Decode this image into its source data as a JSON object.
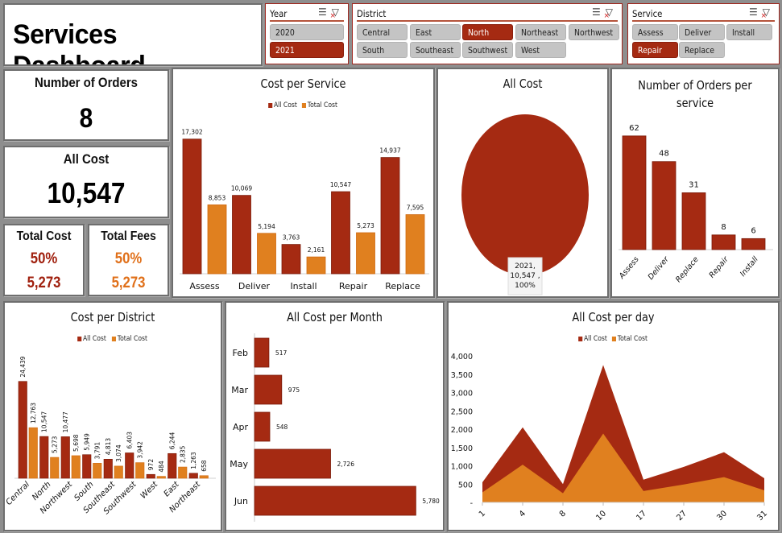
{
  "header": {
    "title": "Services Dashboard"
  },
  "colors": {
    "all_cost": "#a52a12",
    "total_cost": "#e0801f",
    "selected": "#a52a12",
    "unselected": "#c4c4c4"
  },
  "slicers": {
    "year": {
      "label": "Year",
      "icons": [
        "multi-select-icon",
        "clear-filter-icon"
      ],
      "options": [
        {
          "label": "2020",
          "selected": false
        },
        {
          "label": "2021",
          "selected": true
        }
      ]
    },
    "district": {
      "label": "District",
      "icons": [
        "multi-select-icon",
        "clear-filter-icon"
      ],
      "options": [
        {
          "label": "Central",
          "selected": false
        },
        {
          "label": "East",
          "selected": false
        },
        {
          "label": "North",
          "selected": true
        },
        {
          "label": "Northeast",
          "selected": false
        },
        {
          "label": "Northwest",
          "selected": false
        },
        {
          "label": "South",
          "selected": false
        },
        {
          "label": "Southeast",
          "selected": false
        },
        {
          "label": "Southwest",
          "selected": false
        },
        {
          "label": "West",
          "selected": false
        }
      ]
    },
    "service": {
      "label": "Service",
      "icons": [
        "multi-select-icon",
        "clear-filter-icon"
      ],
      "options": [
        {
          "label": "Assess",
          "selected": false
        },
        {
          "label": "Deliver",
          "selected": false
        },
        {
          "label": "Install",
          "selected": false
        },
        {
          "label": "Repair",
          "selected": true
        },
        {
          "label": "Replace",
          "selected": false
        }
      ]
    }
  },
  "kpis": {
    "orders": {
      "label": "Number of Orders",
      "value": "8"
    },
    "all_cost": {
      "label": "All Cost",
      "value": "10,547"
    },
    "total_cost": {
      "label": "Total Cost",
      "percent": "50%",
      "value": "5,273"
    },
    "total_fees": {
      "label": "Total Fees",
      "percent": "50%",
      "value": "5,273"
    }
  },
  "chart_data": [
    {
      "id": "cost_per_service",
      "type": "bar",
      "title": "Cost per Service",
      "categories": [
        "Assess",
        "Deliver",
        "Install",
        "Repair",
        "Replace"
      ],
      "series": [
        {
          "name": "All Cost",
          "values": [
            17302,
            10069,
            3763,
            10547,
            14937
          ],
          "labels": [
            "17,302",
            "10,069",
            "3,763",
            "10,547",
            "14,937"
          ]
        },
        {
          "name": "Total Cost",
          "values": [
            8853,
            5194,
            2161,
            5273,
            7595
          ],
          "labels": [
            "8,853",
            "5,194",
            "2,161",
            "5,273",
            "7,595"
          ]
        }
      ],
      "legend": "top",
      "ylim": [
        0,
        18000
      ],
      "grid": false
    },
    {
      "id": "all_cost_pie",
      "type": "pie",
      "title": "All Cost",
      "categories": [
        "2021"
      ],
      "values": [
        10547
      ],
      "percent": [
        100
      ],
      "data_label": [
        "2021,",
        "10,547 ,",
        "100%"
      ]
    },
    {
      "id": "orders_per_service",
      "type": "bar",
      "title": "Number of Orders per service",
      "categories": [
        "Assess",
        "Deliver",
        "Replace",
        "Repair",
        "Install"
      ],
      "values": [
        62,
        48,
        31,
        8,
        6
      ],
      "ylim": [
        0,
        65
      ],
      "grid": false
    },
    {
      "id": "cost_per_district",
      "type": "bar",
      "title": "Cost per District",
      "categories": [
        "Central",
        "North",
        "Northwest",
        "South",
        "Southeast",
        "Southwest",
        "West",
        "East",
        "Northeast"
      ],
      "series": [
        {
          "name": "All Cost",
          "values": [
            24439,
            10547,
            10477,
            5949,
            4813,
            6403,
            972,
            6244,
            1263
          ],
          "labels": [
            "24,439",
            "10,547",
            "10,477",
            "5,949",
            "4,813",
            "6,403",
            "972",
            "6,244",
            "1,263"
          ]
        },
        {
          "name": "Total Cost",
          "values": [
            12763,
            5273,
            5698,
            3791,
            3074,
            3942,
            484,
            2835,
            658
          ],
          "labels": [
            "12,763",
            "5,273",
            "5,698",
            "3,791",
            "3,074",
            "3,942",
            "484",
            "2,835",
            "658"
          ]
        }
      ],
      "legend": "top",
      "ylim": [
        0,
        26000
      ],
      "grid": false
    },
    {
      "id": "cost_per_month",
      "type": "bar",
      "orientation": "horizontal",
      "title": "All Cost per Month",
      "categories": [
        "Feb",
        "Mar",
        "Apr",
        "May",
        "Jun"
      ],
      "values": [
        517,
        975,
        548,
        2726,
        5780
      ],
      "labels": [
        "517",
        "975",
        "548",
        "2,726",
        "5,780"
      ],
      "xlim": [
        0,
        6000
      ],
      "grid": false
    },
    {
      "id": "cost_per_day",
      "type": "area",
      "title": "All Cost per day",
      "x": [
        "1",
        "4",
        "8",
        "10",
        "17",
        "27",
        "30",
        "31"
      ],
      "series": [
        {
          "name": "All Cost",
          "values": [
            550,
            2050,
            500,
            3750,
            620,
            970,
            1370,
            660
          ]
        },
        {
          "name": "Total Cost",
          "values": [
            275,
            1030,
            250,
            1880,
            310,
            490,
            690,
            330
          ]
        }
      ],
      "yticks": [
        "-",
        "500",
        "1,000",
        "1,500",
        "2,000",
        "2,500",
        "3,000",
        "3,500",
        "4,000"
      ],
      "ylim": [
        0,
        4000
      ],
      "legend": "top",
      "grid": false
    }
  ]
}
